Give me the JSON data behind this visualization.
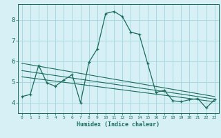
{
  "xlabel": "Humidex (Indice chaleur)",
  "background_color": "#d6f0f5",
  "grid_color": "#a8d8e0",
  "line_color": "#1a6b5a",
  "xlim": [
    -0.5,
    23.5
  ],
  "ylim": [
    3.5,
    8.75
  ],
  "xticks": [
    0,
    1,
    2,
    3,
    4,
    5,
    6,
    7,
    8,
    9,
    10,
    11,
    12,
    13,
    14,
    15,
    16,
    17,
    18,
    19,
    20,
    21,
    22,
    23
  ],
  "yticks": [
    4,
    5,
    6,
    7,
    8
  ],
  "series_y": [
    4.3,
    4.4,
    5.8,
    4.95,
    4.8,
    5.1,
    5.35,
    4.0,
    5.95,
    6.6,
    8.3,
    8.4,
    8.15,
    7.4,
    7.3,
    5.9,
    4.5,
    4.6,
    4.1,
    4.05,
    4.15,
    4.2,
    3.75,
    4.15
  ],
  "trend_series": [
    {
      "x": [
        0,
        23
      ],
      "y": [
        5.9,
        4.3
      ]
    },
    {
      "x": [
        0,
        23
      ],
      "y": [
        5.55,
        4.18
      ]
    },
    {
      "x": [
        0,
        23
      ],
      "y": [
        5.25,
        4.05
      ]
    }
  ]
}
